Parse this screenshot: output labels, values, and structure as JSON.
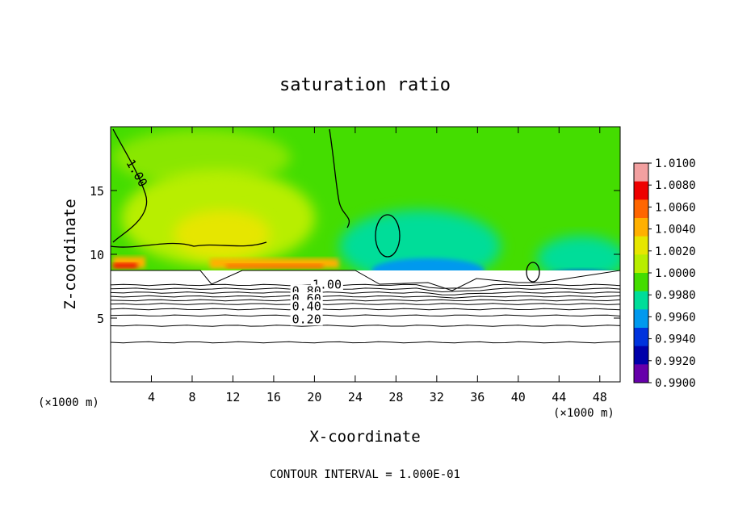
{
  "chart_data": {
    "type": "heatmap",
    "title": "saturation ratio",
    "xlabel": "X-coordinate",
    "ylabel": "Z-coordinate",
    "x_unit_left": "(×1000 m)",
    "x_unit_right": "(×1000 m)",
    "footer": "CONTOUR INTERVAL = 1.000E-01",
    "xlim": [
      0,
      50
    ],
    "ylim": [
      0,
      20
    ],
    "x_ticks": [
      4,
      8,
      12,
      16,
      20,
      24,
      28,
      32,
      36,
      40,
      44,
      48
    ],
    "y_ticks": [
      5,
      10,
      15
    ],
    "grid": false,
    "legend_position": "right",
    "colorbar": {
      "labels": [
        "1.0100",
        "1.0080",
        "1.0060",
        "1.0040",
        "1.0020",
        "1.0000",
        "0.9980",
        "0.9960",
        "0.9940",
        "0.9920",
        "0.9900"
      ],
      "colors": [
        "#f2a0a0",
        "#ee0000",
        "#ff6600",
        "#ffb000",
        "#e6e600",
        "#b8ee00",
        "#44dd00",
        "#00dd99",
        "#0099ee",
        "#0033dd",
        "#0000aa",
        "#6600aa"
      ]
    },
    "contour_labels": [
      "1.00",
      "1.00",
      "0.80",
      "0.60",
      "0.40",
      "0.20"
    ],
    "contour_label_positions": [
      [
        1.5,
        17.2
      ],
      [
        19.8,
        7.3
      ],
      [
        17.8,
        6.8
      ],
      [
        17.8,
        6.2
      ],
      [
        17.8,
        5.6
      ],
      [
        17.8,
        4.6
      ]
    ],
    "contour_levels": [
      0.1,
      0.2,
      0.3,
      0.4,
      0.5,
      0.6,
      0.7,
      0.8,
      0.9,
      1.0
    ],
    "contour_level_heights": [
      3.1,
      4.4,
      5.2,
      5.7,
      6.1,
      6.4,
      6.7,
      7.0,
      7.3,
      7.6
    ],
    "cloud_base_height": 8.6
  }
}
